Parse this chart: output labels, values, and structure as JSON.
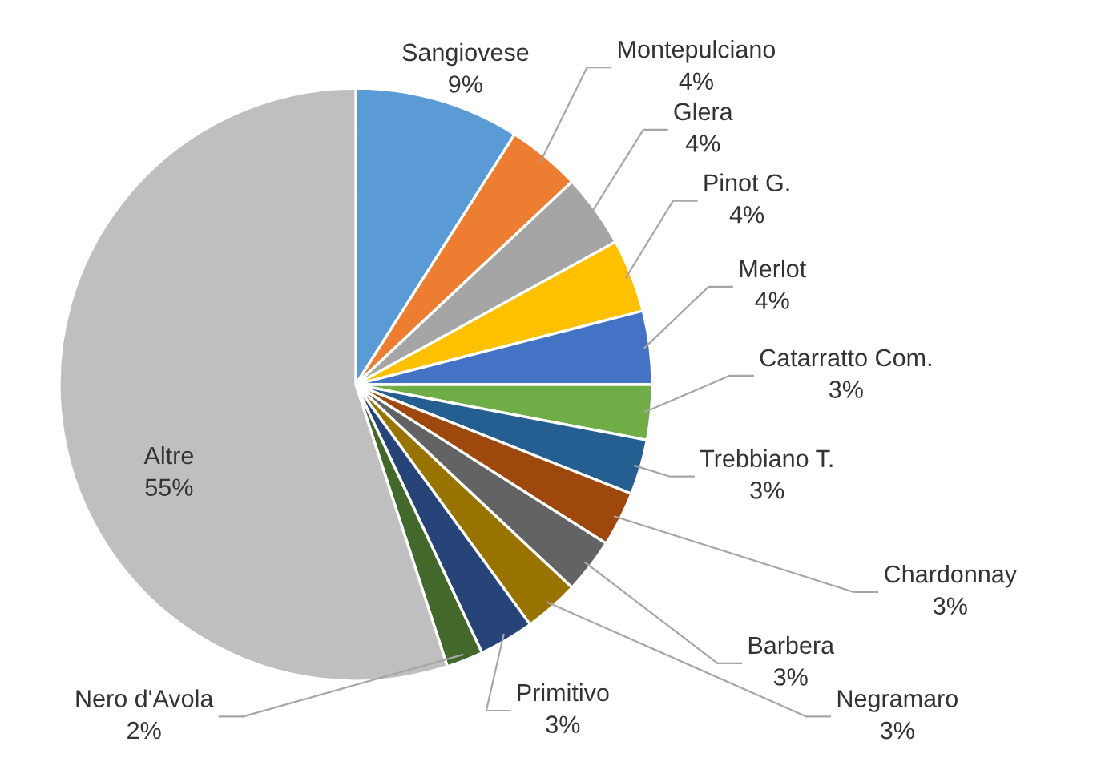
{
  "chart_data": {
    "type": "pie",
    "categories": [
      "Sangiovese",
      "Montepulciano",
      "Glera",
      "Pinot G.",
      "Merlot",
      "Catarratto Com.",
      "Trebbiano T.",
      "Chardonnay",
      "Barbera",
      "Negramaro",
      "Primitivo",
      "Nero d'Avola",
      "Altre"
    ],
    "values": [
      9,
      4,
      4,
      4,
      4,
      3,
      3,
      3,
      3,
      3,
      3,
      2,
      55
    ],
    "value_labels": [
      "9%",
      "4%",
      "4%",
      "4%",
      "4%",
      "3%",
      "3%",
      "3%",
      "3%",
      "3%",
      "3%",
      "2%",
      "55%"
    ],
    "colors": [
      "#5b9bd5",
      "#ed7d31",
      "#a5a5a5",
      "#ffc000",
      "#4472c4",
      "#70ad47",
      "#255e91",
      "#9e480e",
      "#636363",
      "#997300",
      "#264478",
      "#43682b",
      "#bfbfbf"
    ],
    "legend": false
  }
}
